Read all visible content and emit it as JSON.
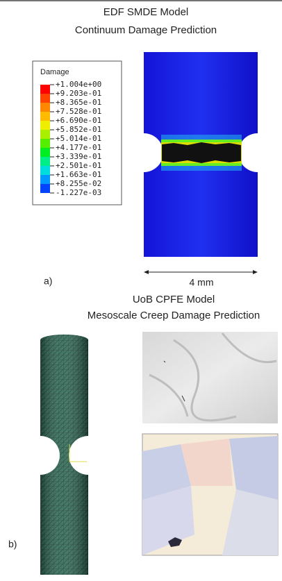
{
  "panel_a": {
    "title": [
      "EDF SMDE Model",
      "Continuum Damage Prediction"
    ],
    "legend": {
      "title": "Damage",
      "entries": [
        {
          "label": "+1.004e+00",
          "color": "#ff0000"
        },
        {
          "label": "+9.203e-01",
          "color": "#ff4400"
        },
        {
          "label": "+8.365e-01",
          "color": "#ff8800"
        },
        {
          "label": "+7.528e-01",
          "color": "#ffbb00"
        },
        {
          "label": "+6.690e-01",
          "color": "#eeee00"
        },
        {
          "label": "+5.852e-01",
          "color": "#aaee00"
        },
        {
          "label": "+5.014e-01",
          "color": "#55ee00"
        },
        {
          "label": "+4.177e-01",
          "color": "#00ee22"
        },
        {
          "label": "+3.339e-01",
          "color": "#00ee88"
        },
        {
          "label": "+2.501e-01",
          "color": "#00dddd"
        },
        {
          "label": "+1.663e-01",
          "color": "#0099ff"
        },
        {
          "label": "+8.255e-02",
          "color": "#0044ff"
        },
        {
          "label": "-1.227e-03",
          "color": "#0000ee"
        }
      ]
    },
    "scale": "4 mm",
    "tag": "a)"
  },
  "panel_b": {
    "title": [
      "UoB CPFE Model",
      "Mesoscale Creep Damage Prediction"
    ],
    "tag": "b)"
  }
}
